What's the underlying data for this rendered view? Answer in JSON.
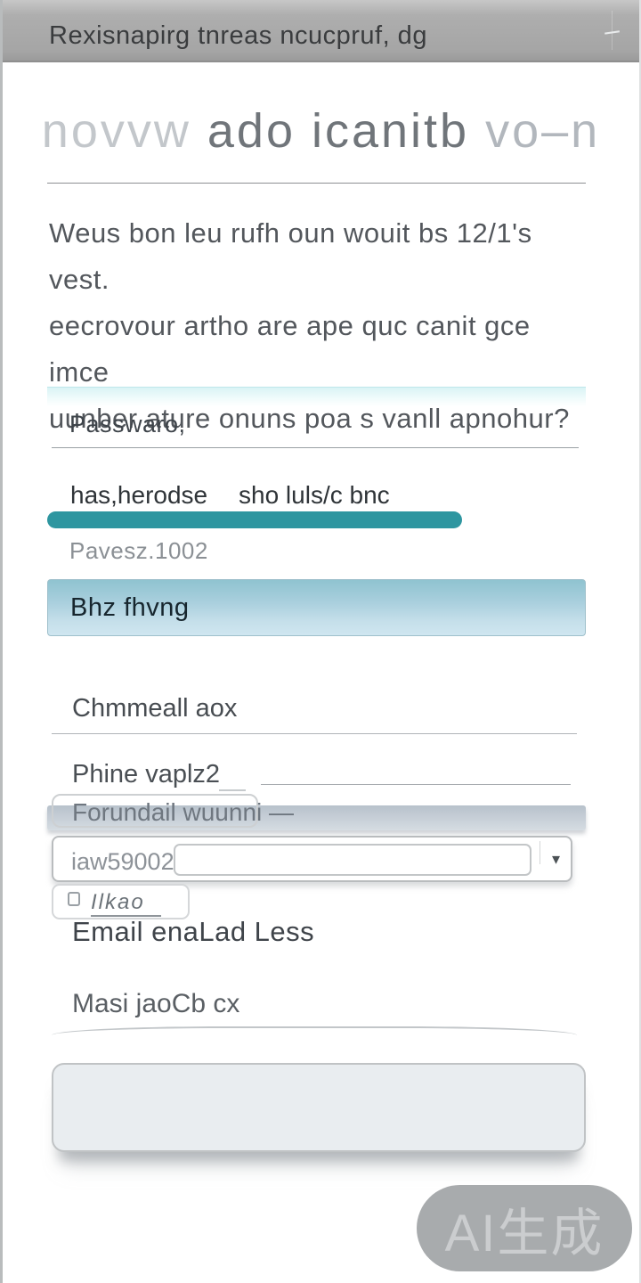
{
  "window": {
    "title": "Rexisnapirg tnreas ncucpruf, dg",
    "minimize_glyph": "–"
  },
  "heading": {
    "part_faded": "novvw ",
    "part_mid": "ado icanitb",
    "part_faded2": " vo–n"
  },
  "intro": {
    "line1": "Weus bon leu rufh oun wouit bs 12/1's vest.",
    "line2": "eecrovour artho are ape quc canit gce imce",
    "line3": "uunber ature onuns poa s vanll apnohur?"
  },
  "form": {
    "password": {
      "label": "Passwaro,"
    },
    "strength": {
      "label_left": "has,herodse",
      "label_right": "sho luls/c bnc",
      "progress_percent": 77,
      "bar_color": "#2e96a0",
      "caption": "Pavesz.1002"
    },
    "primary_button": {
      "label": "Bhz fhvng"
    },
    "field_channel": {
      "label": "Chmmeall aox"
    },
    "field_phone": {
      "label": "Phine vaplz2"
    },
    "select": {
      "label": "Forundail wuunni —"
    },
    "combo": {
      "label": "iaw59002",
      "caret": "▾"
    },
    "checkbox": {
      "label": "Ilkao"
    },
    "email_label": "Email enaLad Less",
    "field_mask": {
      "label": "Masi jaoCb cx"
    }
  },
  "watermark": {
    "text": "AI生成",
    "bg_color": "#a8abad",
    "text_color": "#cbcdcf"
  },
  "accent_colors": {
    "progress_teal": "#2e96a0",
    "button_gradient_top": "#8fc3d0",
    "button_gradient_bottom": "#cfe6f0",
    "password_band": "#d9f3f5"
  }
}
